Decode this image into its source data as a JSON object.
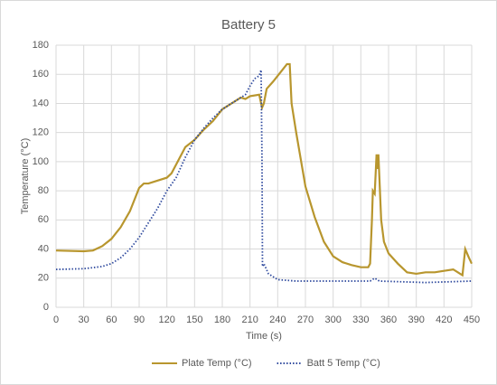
{
  "chart_data": {
    "type": "line",
    "title": "Battery 5",
    "x_label": "Time (s)",
    "y_label": "Temperature (°C)",
    "xlim": [
      0,
      450
    ],
    "xticks": [
      0,
      30,
      60,
      90,
      120,
      150,
      180,
      210,
      240,
      270,
      300,
      330,
      360,
      390,
      420,
      450
    ],
    "ylim": [
      0,
      180
    ],
    "yticks": [
      0,
      20,
      40,
      60,
      80,
      100,
      120,
      140,
      160,
      180
    ],
    "grid": true,
    "legend": "bottom",
    "series": [
      {
        "name": "Plate Temp (°C)",
        "color": "#B8962E",
        "style": "solid",
        "x": [
          0,
          30,
          40,
          50,
          60,
          70,
          80,
          90,
          95,
          100,
          110,
          120,
          125,
          130,
          140,
          150,
          160,
          170,
          180,
          190,
          195,
          200,
          205,
          210,
          220,
          222,
          223,
          225,
          228,
          235,
          245,
          250,
          253,
          255,
          260,
          270,
          280,
          290,
          300,
          310,
          320,
          330,
          338,
          340,
          342,
          343,
          345,
          347,
          348,
          349,
          350,
          352,
          355,
          360,
          370,
          380,
          390,
          400,
          410,
          420,
          430,
          435,
          440,
          443,
          447,
          450
        ],
        "values": [
          39,
          38.5,
          39,
          42,
          47,
          55,
          66,
          82,
          85,
          85,
          87,
          89,
          92,
          98,
          110,
          115,
          122,
          128,
          136,
          140,
          142,
          144,
          143,
          145,
          146,
          140,
          137,
          140,
          150,
          155,
          163,
          167,
          167,
          140,
          120,
          83,
          62,
          45,
          35,
          31,
          29,
          27.5,
          27.5,
          30,
          60,
          80,
          78,
          105,
          95,
          105,
          90,
          60,
          45,
          37,
          30,
          24,
          23,
          24,
          24,
          25,
          26,
          24,
          22,
          40,
          34,
          30
        ]
      },
      {
        "name": "Batt 5 Temp (°C)",
        "color": "#2F4A9E",
        "style": "dotted",
        "x": [
          0,
          30,
          50,
          60,
          70,
          80,
          90,
          100,
          110,
          120,
          130,
          140,
          150,
          160,
          170,
          180,
          190,
          200,
          205,
          210,
          215,
          220,
          222,
          223,
          223.5,
          225,
          230,
          240,
          260,
          300,
          340,
          345,
          350,
          400,
          450
        ],
        "values": [
          26,
          26.5,
          28,
          30,
          34,
          40,
          48,
          58,
          68,
          80,
          89,
          103,
          115,
          123,
          130,
          136,
          140,
          144,
          146,
          152,
          157,
          159,
          163,
          100,
          28,
          30,
          23,
          19,
          18,
          18,
          18,
          20,
          18,
          17,
          18
        ]
      }
    ]
  }
}
